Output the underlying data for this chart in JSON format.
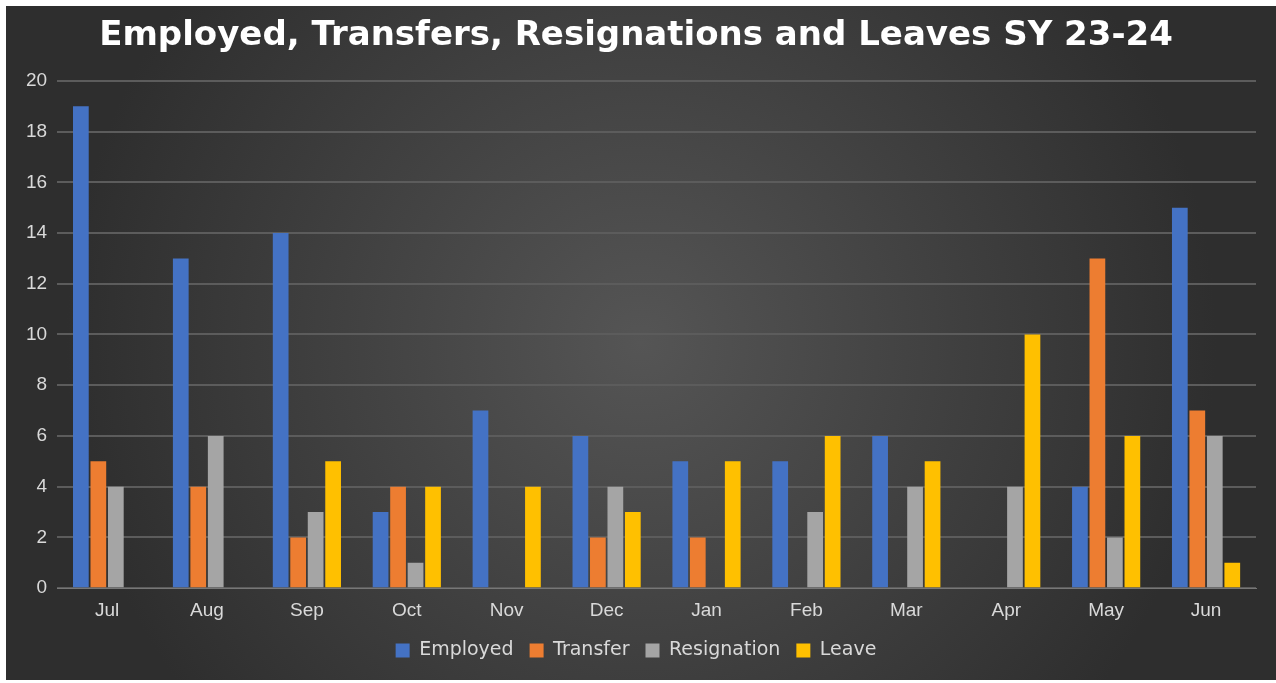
{
  "chart_data": {
    "type": "bar",
    "title": "Employed, Transfers, Resignations and Leaves SY 23-24",
    "categories": [
      "Jul",
      "Aug",
      "Sep",
      "Oct",
      "Nov",
      "Dec",
      "Jan",
      "Feb",
      "Mar",
      "Apr",
      "May",
      "Jun"
    ],
    "series": [
      {
        "name": "Employed",
        "color": "#4472c4",
        "values": [
          19,
          13,
          14,
          3,
          7,
          6,
          5,
          5,
          6,
          0,
          4,
          15
        ]
      },
      {
        "name": "Transfer",
        "color": "#ed7d31",
        "values": [
          5,
          4,
          2,
          4,
          0,
          2,
          2,
          0,
          0,
          0,
          13,
          7
        ]
      },
      {
        "name": "Resignation",
        "color": "#a5a5a5",
        "values": [
          4,
          6,
          3,
          1,
          0,
          4,
          0,
          3,
          4,
          4,
          2,
          6
        ]
      },
      {
        "name": "Leave",
        "color": "#ffc000",
        "values": [
          0,
          0,
          5,
          4,
          4,
          3,
          5,
          6,
          5,
          10,
          6,
          1
        ]
      }
    ],
    "ylim": [
      0,
      20
    ],
    "yticks": [
      0,
      2,
      4,
      6,
      8,
      10,
      12,
      14,
      16,
      18,
      20
    ],
    "grid": "y",
    "legend": "bottom"
  }
}
